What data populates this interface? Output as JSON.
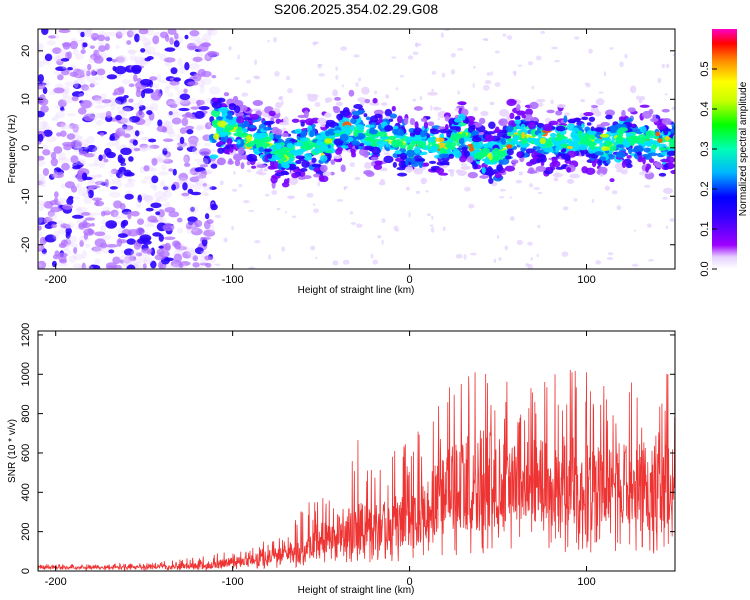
{
  "figure_title": "S206.2025.354.02.29.G08",
  "chart_data": [
    {
      "type": "heatmap",
      "title": "",
      "xlabel": "Height of straight line (km)",
      "ylabel": "Frequency (Hz)",
      "xlim": [
        -210,
        150
      ],
      "ylim": [
        -25,
        24.5
      ],
      "xticks": [
        -200,
        -100,
        0,
        100
      ],
      "yticks": [
        -20,
        -10,
        0,
        10,
        20
      ],
      "colorbar": {
        "label": "Normalized spectral amplitude",
        "range": [
          0.0,
          0.6
        ],
        "ticks": [
          0.0,
          0.1,
          0.2,
          0.3,
          0.4,
          0.5
        ],
        "tick_labels": [
          "0.0",
          "0.1",
          "0.2",
          "0.3",
          "0.4",
          "0.5"
        ],
        "colormap": [
          "#ffffff",
          "#9d00ff",
          "#0000ff",
          "#00ffff",
          "#00ff00",
          "#ffff00",
          "#ff8800",
          "#ff0000",
          "#ff00c8"
        ]
      },
      "description_data": {
        "noise_region_x": [
          -210,
          -110
        ],
        "signal_band_center_hz": [
          [
            -110,
            5
          ],
          [
            -100,
            4
          ],
          [
            -90,
            2
          ],
          [
            -80,
            1
          ],
          [
            -70,
            -2
          ],
          [
            -60,
            1
          ],
          [
            -50,
            0
          ],
          [
            -40,
            3
          ],
          [
            -30,
            4
          ],
          [
            -20,
            2
          ],
          [
            -10,
            2
          ],
          [
            0,
            0
          ],
          [
            10,
            1
          ],
          [
            20,
            0
          ],
          [
            30,
            3
          ],
          [
            40,
            -1
          ],
          [
            50,
            -2
          ],
          [
            60,
            3
          ],
          [
            70,
            2
          ],
          [
            80,
            1
          ],
          [
            90,
            2
          ],
          [
            100,
            2
          ],
          [
            110,
            0
          ],
          [
            120,
            2
          ],
          [
            130,
            2
          ],
          [
            140,
            1
          ],
          [
            150,
            1
          ]
        ],
        "peak_amplitude": 0.6
      }
    },
    {
      "type": "line",
      "title": "",
      "xlabel": "Height of straight line (km)",
      "ylabel": "SNR (10 * v/v)",
      "xlim": [
        -210,
        150
      ],
      "ylim": [
        0,
        1220
      ],
      "xticks": [
        -200,
        -100,
        0,
        100
      ],
      "yticks": [
        0,
        200,
        400,
        600,
        800,
        1000,
        1200
      ],
      "color": "#ee3333",
      "envelope": {
        "x": [
          -210,
          -180,
          -150,
          -120,
          -110,
          -100,
          -90,
          -80,
          -70,
          -60,
          -50,
          -40,
          -30,
          -20,
          -10,
          0,
          10,
          20,
          30,
          40,
          50,
          60,
          70,
          80,
          90,
          100,
          110,
          120,
          130,
          140,
          150
        ],
        "mean": [
          18,
          18,
          20,
          25,
          30,
          45,
          55,
          70,
          90,
          110,
          150,
          180,
          200,
          220,
          230,
          240,
          320,
          380,
          420,
          430,
          450,
          440,
          430,
          450,
          420,
          430,
          420,
          440,
          430,
          420,
          430
        ],
        "max": [
          35,
          35,
          40,
          70,
          90,
          110,
          120,
          160,
          200,
          330,
          420,
          300,
          690,
          520,
          600,
          700,
          760,
          960,
          1100,
          1180,
          1160,
          960,
          1050,
          1000,
          1150,
          1010,
          950,
          1000,
          1000,
          1220,
          900
        ]
      }
    }
  ]
}
